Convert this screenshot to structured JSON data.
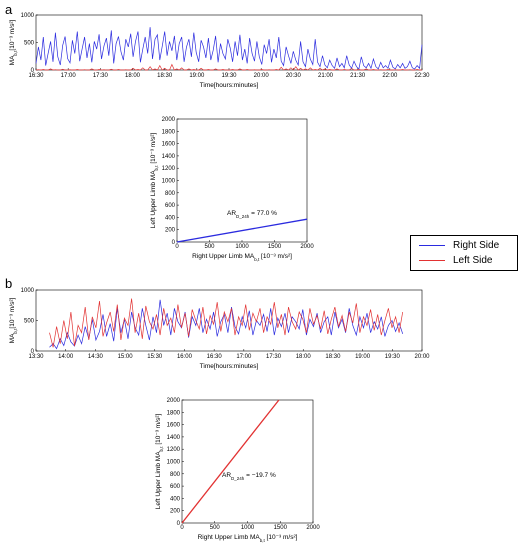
{
  "labels": {
    "panel_a": "a",
    "panel_b": "b"
  },
  "colors": {
    "right": "#2b2bdf",
    "left": "#e23232"
  },
  "legend": {
    "right": "Right Side",
    "left": "Left Side"
  },
  "chart_data": [
    {
      "id": "a-top",
      "type": "line",
      "xlabel": "Time[hours:minutes]",
      "ylabel_main": "MA",
      "ylabel_sub": "b,t",
      "ylabel_unit": "[10⁻³ m/s²]",
      "ylim": [
        0,
        1000
      ],
      "yticks": [
        0,
        500,
        1000
      ],
      "xlim": [
        0,
        360
      ],
      "xtick_labels": [
        "16:30",
        "17:00",
        "17:30",
        "18:00",
        "18:30",
        "19:00",
        "19:30",
        "20:00",
        "20:30",
        "21:00",
        "21:30",
        "22:00",
        "22:30"
      ],
      "series": [
        {
          "key": "right",
          "values": [
            120,
            420,
            180,
            600,
            80,
            300,
            520,
            150,
            680,
            240,
            90,
            450,
            610,
            210,
            130,
            540,
            300,
            700,
            160,
            380,
            600,
            220,
            480,
            140,
            520,
            380,
            650,
            200,
            440,
            580,
            260,
            720,
            120,
            480,
            610,
            330,
            180,
            560,
            420,
            660,
            240,
            520,
            700,
            140,
            380,
            600,
            300,
            780,
            200,
            560,
            640,
            180,
            430,
            700,
            260,
            520,
            350,
            620,
            180,
            480,
            600,
            150,
            420,
            560,
            240,
            680,
            320,
            150,
            540,
            420,
            220,
            580,
            180,
            360,
            620,
            140,
            480,
            300,
            200,
            560,
            400,
            150,
            520,
            260,
            640,
            180,
            380,
            120,
            580,
            300,
            160,
            520,
            240,
            100,
            460,
            300,
            560,
            140,
            380,
            220,
            600,
            160,
            80,
            420,
            260,
            120,
            340,
            180,
            90,
            520,
            150,
            60,
            380,
            200,
            100,
            560,
            140,
            60,
            260,
            90,
            40,
            180,
            80,
            30,
            220,
            60,
            120,
            40,
            260,
            90,
            30,
            160,
            60,
            20,
            240,
            80,
            40,
            120,
            30,
            200,
            60,
            20,
            140,
            40,
            80,
            30,
            180,
            50,
            20,
            100,
            40,
            120,
            30,
            60,
            160,
            40,
            20,
            80,
            30,
            460
          ]
        },
        {
          "key": "left",
          "values": [
            0,
            5,
            0,
            10,
            0,
            0,
            20,
            0,
            5,
            0,
            0,
            15,
            0,
            0,
            5,
            0,
            0,
            10,
            0,
            0,
            5,
            0,
            0,
            20,
            0,
            0,
            10,
            0,
            5,
            0,
            0,
            15,
            0,
            0,
            10,
            0,
            0,
            5,
            0,
            0,
            30,
            0,
            10,
            0,
            40,
            0,
            0,
            60,
            0,
            20,
            0,
            80,
            0,
            30,
            0,
            0,
            100,
            0,
            20,
            0,
            40,
            0,
            0,
            20,
            0,
            10,
            0,
            0,
            30,
            0,
            0,
            10,
            0,
            0,
            20,
            0,
            0,
            10,
            0,
            0,
            0,
            10,
            0,
            0,
            20,
            0,
            0,
            10,
            0,
            0,
            5,
            0,
            0,
            10,
            0,
            0,
            5,
            0,
            0,
            10,
            0,
            50,
            0,
            20,
            0,
            40,
            0,
            60,
            0,
            30,
            0,
            20,
            0,
            40,
            0,
            10,
            0,
            30,
            0,
            20,
            0,
            10,
            0,
            0,
            20,
            0,
            0,
            10,
            0,
            0,
            30,
            0,
            0,
            10,
            0,
            0,
            20,
            0,
            0,
            10,
            0,
            0,
            5,
            0,
            0,
            10,
            0,
            0,
            5,
            0,
            0,
            10,
            0,
            0,
            5,
            0,
            0,
            10,
            0,
            0
          ]
        }
      ]
    },
    {
      "id": "a-scatter",
      "type": "line",
      "annotation_main": "AR",
      "annotation_sub": "D_24h",
      "annotation_val": " = 77.0 %",
      "xlabel_main": "Right  Upper Limb MA",
      "xlabel_sub": "b,t",
      "xlabel_unit": " [10⁻³ m/s²]",
      "ylabel_main": "Left  Upper Limb MA",
      "ylabel_sub": "b,t",
      "ylabel_unit": " [10⁻³ m/s²]",
      "xlim": [
        0,
        2000
      ],
      "ylim": [
        0,
        2000
      ],
      "xticks": [
        0,
        500,
        1000,
        1500,
        2000
      ],
      "yticks": [
        0,
        200,
        400,
        600,
        800,
        1000,
        1200,
        1400,
        1600,
        1800,
        2000
      ],
      "series": [
        {
          "key": "right",
          "x": [
            0,
            2000
          ],
          "y": [
            0,
            370
          ]
        }
      ]
    },
    {
      "id": "b-top",
      "type": "line",
      "xlabel": "Time[hours:minutes]",
      "ylabel_main": "MA",
      "ylabel_sub": "b,t",
      "ylabel_unit": "[10⁻³ m/s²]",
      "ylim": [
        0,
        1000
      ],
      "yticks": [
        0,
        500,
        1000
      ],
      "xlim": [
        0,
        390
      ],
      "xtick_labels": [
        "13:30",
        "14:00",
        "14:30",
        "15:00",
        "15:30",
        "16:00",
        "16:30",
        "17:00",
        "17:30",
        "18:00",
        "18:30",
        "19:00",
        "19:30",
        "20:00"
      ],
      "series": [
        {
          "key": "right",
          "values": [
            60,
            120,
            40,
            200,
            90,
            300,
            150,
            80,
            260,
            120,
            400,
            200,
            520,
            180,
            320,
            600,
            240,
            450,
            160,
            700,
            300,
            520,
            200,
            640,
            380,
            260,
            700,
            420,
            180,
            560,
            300,
            840,
            420,
            620,
            260,
            700,
            480,
            380,
            640,
            220,
            560,
            420,
            700,
            300,
            520,
            360,
            640,
            240,
            480,
            600,
            300,
            720,
            400,
            280,
            560,
            380,
            660,
            260,
            500,
            420,
            600,
            320,
            700,
            260,
            540,
            400,
            620,
            300,
            560,
            480,
            360,
            680,
            260,
            520,
            400,
            620,
            300,
            480,
            560,
            260,
            640,
            380,
            520,
            300,
            700,
            420,
            260,
            560,
            380,
            620,
            300,
            480,
            360,
            560,
            240,
            420,
            500,
            320,
            460,
            280
          ]
        },
        {
          "key": "left",
          "values": [
            300,
            60,
            400,
            120,
            500,
            200,
            640,
            80,
            420,
            300,
            720,
            180,
            560,
            380,
            820,
            240,
            460,
            640,
            320,
            760,
            180,
            540,
            420,
            860,
            300,
            620,
            200,
            740,
            480,
            360,
            600,
            260,
            700,
            420,
            540,
            300,
            760,
            380,
            620,
            240,
            680,
            500,
            360,
            720,
            280,
            580,
            440,
            800,
            320,
            640,
            480,
            700,
            260,
            560,
            420,
            760,
            340,
            620,
            480,
            700,
            300,
            560,
            440,
            800,
            380,
            600,
            260,
            720,
            480,
            360,
            640,
            520,
            300,
            700,
            440,
            580,
            360,
            660,
            280,
            520,
            720,
            400,
            580,
            320,
            640,
            460,
            780,
            300,
            560,
            420,
            680,
            340,
            600,
            260,
            500,
            700,
            380,
            560,
            300,
            640
          ]
        }
      ]
    },
    {
      "id": "b-scatter",
      "type": "line",
      "annotation_main": "AR",
      "annotation_sub": "D_24h",
      "annotation_val": " = −19.7 %",
      "xlabel_main": "Right  Upper Limb MA",
      "xlabel_sub": "b,t",
      "xlabel_unit": " [10⁻³ m/s²]",
      "ylabel_main": "Left  Upper Limb MA",
      "ylabel_sub": "b,t",
      "ylabel_unit": " [10⁻³ m/s²]",
      "xlim": [
        0,
        2000
      ],
      "ylim": [
        0,
        2000
      ],
      "xticks": [
        0,
        500,
        1000,
        1500,
        2000
      ],
      "yticks": [
        0,
        200,
        400,
        600,
        800,
        1000,
        1200,
        1400,
        1600,
        1800,
        2000
      ],
      "series": [
        {
          "key": "left",
          "x": [
            0,
            1480
          ],
          "y": [
            0,
            2000
          ]
        }
      ]
    }
  ]
}
